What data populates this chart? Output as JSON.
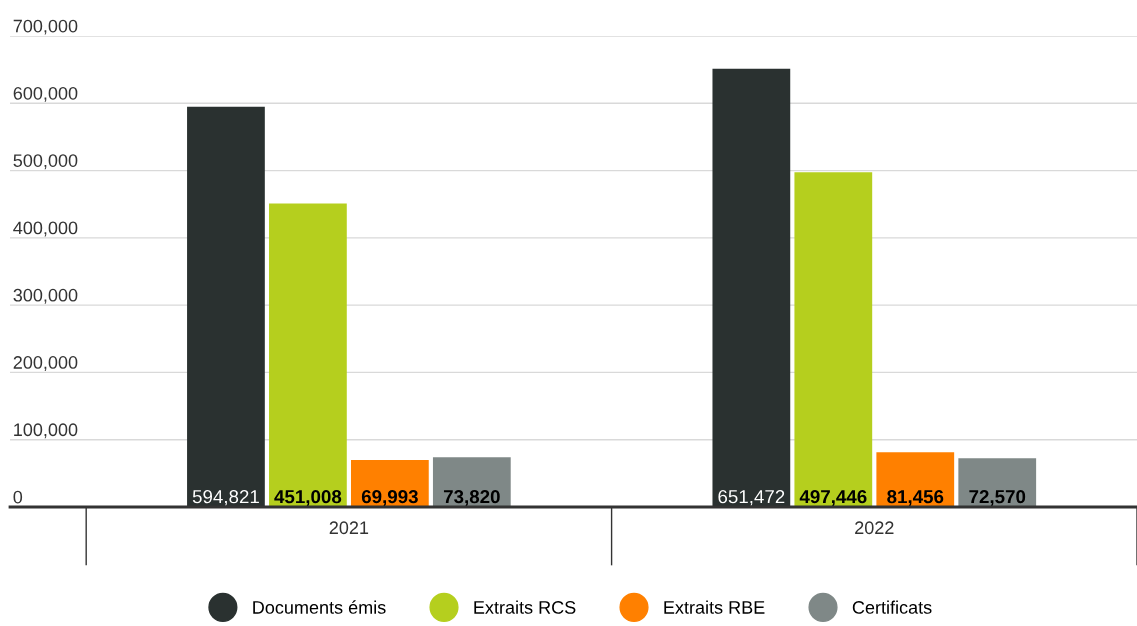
{
  "chart_data": {
    "type": "bar",
    "categories": [
      "2021",
      "2022"
    ],
    "series": [
      {
        "name": "Documents émis",
        "color": "#2a3130",
        "values": [
          594821,
          651472
        ],
        "value_labels": [
          "594,821",
          "651,472"
        ]
      },
      {
        "name": "Extraits RCS",
        "color": "#b5cf1e",
        "values": [
          451008,
          497446
        ],
        "value_labels": [
          "451,008",
          "497,446"
        ]
      },
      {
        "name": "Extraits RBE",
        "color": "#ff8000",
        "values": [
          69993,
          81456
        ],
        "value_labels": [
          "69,993",
          "81,456"
        ]
      },
      {
        "name": "Certificats",
        "color": "#7f8887",
        "values": [
          73820,
          72570
        ],
        "value_labels": [
          "73,820",
          "72,570"
        ]
      }
    ],
    "ylim": [
      0,
      700000
    ],
    "yticks": [
      0,
      {
        "value": 100000,
        "label": "100,000"
      },
      {
        "value": 200000,
        "label": "200,000"
      },
      {
        "value": 300000,
        "label": "300,000"
      },
      {
        "value": 400000,
        "label": "400,000"
      },
      {
        "value": 500000,
        "label": "500,000"
      },
      {
        "value": 600000,
        "label": "600,000"
      },
      {
        "value": 700000,
        "label": "700,000"
      }
    ],
    "grid": "y",
    "legend": "bottom"
  }
}
